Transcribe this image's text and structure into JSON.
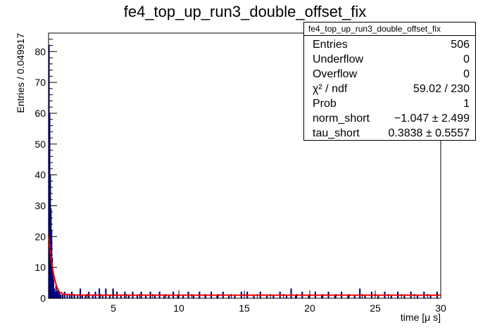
{
  "chart_data": {
    "type": "bar",
    "title": "fe4_top_up_run3_double_offset_fix",
    "xlabel": "time [μ s]",
    "ylabel": "Entries / 0.049917",
    "xlim": [
      0.05,
      30
    ],
    "ylim": [
      0,
      86
    ],
    "xticks": [
      5,
      10,
      15,
      20,
      25,
      30
    ],
    "yticks": [
      0,
      10,
      20,
      30,
      40,
      50,
      60,
      70,
      80
    ],
    "bin_width": 0.049917,
    "histogram": {
      "name": "fe4_top_up_run3_double_offset_fix",
      "color": "#000080",
      "bins": [
        {
          "x": 0.075,
          "y": 82
        },
        {
          "x": 0.125,
          "y": 60
        },
        {
          "x": 0.175,
          "y": 40
        },
        {
          "x": 0.225,
          "y": 29
        },
        {
          "x": 0.275,
          "y": 22
        },
        {
          "x": 0.325,
          "y": 13
        },
        {
          "x": 0.375,
          "y": 9
        },
        {
          "x": 0.425,
          "y": 6
        },
        {
          "x": 0.475,
          "y": 3
        },
        {
          "x": 0.525,
          "y": 2
        },
        {
          "x": 0.575,
          "y": 1
        },
        {
          "x": 0.625,
          "y": 4
        },
        {
          "x": 0.675,
          "y": 2
        },
        {
          "x": 0.725,
          "y": 1
        },
        {
          "x": 0.775,
          "y": 3
        },
        {
          "x": 0.825,
          "y": 1
        },
        {
          "x": 0.875,
          "y": 2
        },
        {
          "x": 0.975,
          "y": 1
        },
        {
          "x": 1.125,
          "y": 1
        },
        {
          "x": 1.275,
          "y": 2
        },
        {
          "x": 1.475,
          "y": 1
        },
        {
          "x": 1.675,
          "y": 1
        },
        {
          "x": 1.825,
          "y": 2
        },
        {
          "x": 2.025,
          "y": 1
        },
        {
          "x": 2.275,
          "y": 1
        },
        {
          "x": 2.475,
          "y": 3
        },
        {
          "x": 2.625,
          "y": 1
        },
        {
          "x": 2.875,
          "y": 1
        },
        {
          "x": 3.125,
          "y": 2
        },
        {
          "x": 3.425,
          "y": 1
        },
        {
          "x": 3.625,
          "y": 2
        },
        {
          "x": 3.925,
          "y": 3
        },
        {
          "x": 4.175,
          "y": 1
        },
        {
          "x": 4.425,
          "y": 3
        },
        {
          "x": 4.725,
          "y": 1
        },
        {
          "x": 4.975,
          "y": 3
        },
        {
          "x": 5.275,
          "y": 2
        },
        {
          "x": 5.575,
          "y": 1
        },
        {
          "x": 5.875,
          "y": 2
        },
        {
          "x": 6.175,
          "y": 1
        },
        {
          "x": 6.475,
          "y": 2
        },
        {
          "x": 6.825,
          "y": 1
        },
        {
          "x": 7.125,
          "y": 2
        },
        {
          "x": 7.475,
          "y": 1
        },
        {
          "x": 7.825,
          "y": 2
        },
        {
          "x": 8.175,
          "y": 1
        },
        {
          "x": 8.525,
          "y": 2
        },
        {
          "x": 8.875,
          "y": 1
        },
        {
          "x": 9.225,
          "y": 1
        },
        {
          "x": 9.575,
          "y": 2
        },
        {
          "x": 9.925,
          "y": 1
        },
        {
          "x": 10.325,
          "y": 1
        },
        {
          "x": 10.725,
          "y": 2
        },
        {
          "x": 11.125,
          "y": 1
        },
        {
          "x": 11.575,
          "y": 2
        },
        {
          "x": 12.025,
          "y": 1
        },
        {
          "x": 12.475,
          "y": 2
        },
        {
          "x": 12.925,
          "y": 1
        },
        {
          "x": 13.375,
          "y": 2
        },
        {
          "x": 13.825,
          "y": 1
        },
        {
          "x": 14.275,
          "y": 1
        },
        {
          "x": 14.775,
          "y": 2
        },
        {
          "x": 15.225,
          "y": 2
        },
        {
          "x": 15.725,
          "y": 1
        },
        {
          "x": 16.225,
          "y": 2
        },
        {
          "x": 16.725,
          "y": 1
        },
        {
          "x": 17.225,
          "y": 1
        },
        {
          "x": 17.725,
          "y": 2
        },
        {
          "x": 18.225,
          "y": 1
        },
        {
          "x": 18.575,
          "y": 3
        },
        {
          "x": 18.925,
          "y": 1
        },
        {
          "x": 19.425,
          "y": 2
        },
        {
          "x": 19.925,
          "y": 1
        },
        {
          "x": 20.425,
          "y": 2
        },
        {
          "x": 20.925,
          "y": 1
        },
        {
          "x": 21.425,
          "y": 2
        },
        {
          "x": 21.925,
          "y": 1
        },
        {
          "x": 22.425,
          "y": 2
        },
        {
          "x": 22.925,
          "y": 1
        },
        {
          "x": 23.425,
          "y": 1
        },
        {
          "x": 23.825,
          "y": 3
        },
        {
          "x": 24.225,
          "y": 1
        },
        {
          "x": 24.725,
          "y": 2
        },
        {
          "x": 25.225,
          "y": 1
        },
        {
          "x": 25.725,
          "y": 2
        },
        {
          "x": 26.225,
          "y": 1
        },
        {
          "x": 26.725,
          "y": 2
        },
        {
          "x": 27.225,
          "y": 1
        },
        {
          "x": 27.725,
          "y": 2
        },
        {
          "x": 28.225,
          "y": 1
        },
        {
          "x": 28.725,
          "y": 2
        },
        {
          "x": 29.225,
          "y": 1
        },
        {
          "x": 29.725,
          "y": 2
        }
      ]
    },
    "fit": {
      "color": "#ff0000",
      "x": [
        0.05,
        0.15,
        0.25,
        0.35,
        0.45,
        0.55,
        0.65,
        0.75,
        0.9,
        1.2,
        2,
        5,
        10,
        15,
        20,
        25,
        30
      ],
      "y": [
        21,
        16.5,
        12.8,
        9.8,
        7.4,
        5.6,
        4.1,
        3.0,
        2.0,
        1.3,
        1.05,
        1.0,
        1.0,
        1.0,
        1.0,
        1.0,
        1.0
      ]
    },
    "stats_box": {
      "title": "fe4_top_up_run3_double_offset_fix",
      "rows": [
        {
          "label": "Entries",
          "value": "506"
        },
        {
          "label": "Underflow",
          "value": "0"
        },
        {
          "label": "Overflow",
          "value": "0"
        },
        {
          "label": "χ² / ndf",
          "value": "59.02 / 230"
        },
        {
          "label": "Prob",
          "value": "1"
        },
        {
          "label": "norm_short",
          "value": "−1.047 ± 2.499"
        },
        {
          "label": "tau_short",
          "value": "0.3838 ± 0.5557"
        }
      ]
    }
  }
}
